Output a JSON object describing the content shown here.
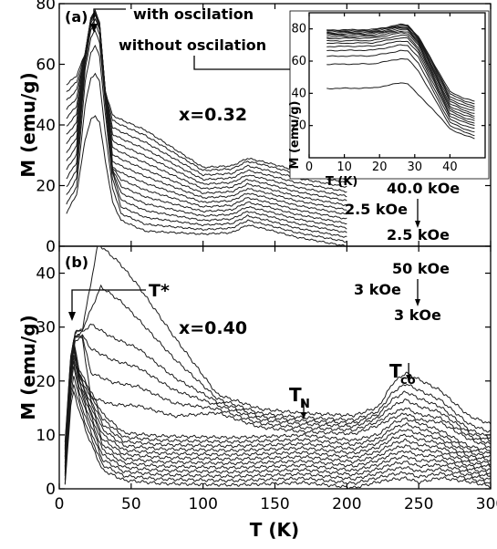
{
  "chart_data": [
    {
      "panel_label": "(a)",
      "type": "line",
      "xlim": [
        0,
        300
      ],
      "ylim": [
        0,
        80
      ],
      "x_ticks": [
        "0",
        "50",
        "100",
        "150",
        "200",
        "250",
        "300"
      ],
      "y_ticks": [
        "0",
        "20",
        "40",
        "60",
        "80"
      ],
      "ylabel": "M (emu/g)",
      "annotations": {
        "with": "with oscilation",
        "without": "without oscilation",
        "composition": "x=0.32",
        "field_high": "40.0 kOe",
        "field_low_a": "2.5 kOe",
        "field_low_b": "2.5 kOe"
      },
      "series_count": 16,
      "curve_peak_T": 25,
      "curve_peak_M": [
        43,
        57,
        66,
        71,
        73.5,
        75,
        76,
        76.5,
        77,
        77,
        77.5,
        77.5,
        77.5,
        77.5,
        77.5,
        77.5
      ],
      "curve_end_M": [
        0,
        1.5,
        3,
        4.5,
        6,
        7.5,
        9,
        10.5,
        12,
        13.5,
        15,
        16.5,
        18,
        19.5,
        21,
        22
      ],
      "inset": {
        "type": "line",
        "xlim": [
          0,
          50
        ],
        "ylim": [
          0,
          90
        ],
        "x_ticks": [
          "0",
          "10",
          "20",
          "30",
          "40"
        ],
        "y_ticks": [
          "20",
          "40",
          "60",
          "80"
        ],
        "xlabel": "T (K)",
        "ylabel": "M (emu/g)",
        "series_count": 15,
        "plateau_M": [
          43,
          58,
          63,
          66.5,
          69,
          71,
          72.5,
          74,
          75,
          76,
          76.8,
          77.5,
          78.2,
          78.8,
          79.3
        ],
        "end_M": [
          12,
          14,
          16,
          18,
          20,
          21.5,
          23,
          24.5,
          26,
          27.5,
          29,
          30.5,
          32,
          33.5,
          35
        ]
      }
    },
    {
      "panel_label": "(b)",
      "type": "line",
      "xlim": [
        0,
        300
      ],
      "ylim": [
        0,
        45
      ],
      "x_ticks": [
        "0",
        "50",
        "100",
        "150",
        "200",
        "250",
        "300"
      ],
      "y_ticks": [
        "0",
        "10",
        "20",
        "30",
        "40"
      ],
      "xlabel": "T (K)",
      "ylabel": "M (emu/g)",
      "annotations": {
        "t_star": "T*",
        "composition": "x=0.40",
        "tn_main": "T",
        "tn_sub": "N",
        "tco_main": "T",
        "tco_sub": "co",
        "field_high": "50 kOe",
        "field_low_a": "3 kOe",
        "field_low_b": "3 kOe",
        "tn_arrow_T": 170,
        "tco_arrow_T": 243
      },
      "series_count": 18,
      "curve_low_T_peak_M": [
        18,
        19.5,
        21,
        22.5,
        23.5,
        24.5,
        25,
        25.5,
        26,
        26.5,
        27,
        27.5,
        27.5,
        28,
        28,
        28.5,
        29,
        29
      ],
      "curve_broad_peak_M": [
        0,
        0,
        0,
        0,
        0,
        0,
        0,
        0,
        0,
        0,
        0,
        0,
        17,
        21.5,
        26,
        30.5,
        37.5,
        45.5
      ],
      "curve_plateau_M": [
        1,
        1.8,
        2.6,
        3.4,
        4.2,
        5,
        5.8,
        6.6,
        7.4,
        8.2,
        9,
        9.8,
        10.6,
        11.3,
        12,
        12.6,
        13.2,
        14
      ],
      "curve_co_peak_M": [
        2,
        3,
        4,
        5,
        6,
        7,
        8,
        9,
        10,
        11,
        12,
        13,
        14,
        15,
        16.5,
        18,
        19.5,
        21.5
      ],
      "curve_end_M": [
        0.5,
        1.1,
        1.7,
        2.3,
        2.9,
        3.5,
        4.1,
        4.7,
        5.3,
        5.9,
        6.5,
        7.1,
        7.7,
        8.3,
        8.9,
        9.5,
        10.5,
        12
      ]
    }
  ]
}
